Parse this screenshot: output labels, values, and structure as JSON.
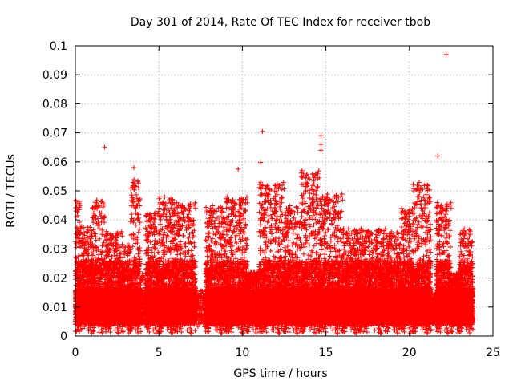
{
  "chart_data": {
    "type": "scatter",
    "title": "Day 301 of 2014, Rate Of TEC Index for receiver tbob",
    "xlabel": "GPS time / hours",
    "ylabel": "ROTI / TECUs",
    "xlim": [
      0,
      25
    ],
    "ylim": [
      0,
      0.1
    ],
    "xticks": [
      0,
      5,
      10,
      15,
      20,
      25
    ],
    "yticks": [
      0,
      0.01,
      0.02,
      0.03,
      0.04,
      0.05,
      0.06,
      0.07,
      0.08,
      0.09,
      0.1
    ],
    "xtick_labels": [
      "0",
      "5",
      "10",
      "15",
      "20",
      "25"
    ],
    "ytick_labels": [
      "0",
      "0.01",
      "0.02",
      "0.03",
      "0.04",
      "0.05",
      "0.06",
      "0.07",
      "0.08",
      "0.09",
      "0.1"
    ],
    "grid": true,
    "marker": "+",
    "color": "#ff0000",
    "notable_points": [
      {
        "x": 1.75,
        "y": 0.065
      },
      {
        "x": 3.5,
        "y": 0.058
      },
      {
        "x": 9.75,
        "y": 0.0575
      },
      {
        "x": 11.2,
        "y": 0.0705
      },
      {
        "x": 11.1,
        "y": 0.0598
      },
      {
        "x": 14.7,
        "y": 0.069
      },
      {
        "x": 14.7,
        "y": 0.066
      },
      {
        "x": 14.7,
        "y": 0.064
      },
      {
        "x": 21.7,
        "y": 0.062
      },
      {
        "x": 22.2,
        "y": 0.097
      }
    ],
    "activity_profile": [
      {
        "x0": 0.0,
        "x1": 0.3,
        "y_max": 0.047,
        "density": 1.0
      },
      {
        "x0": 0.3,
        "x1": 1.0,
        "y_max": 0.038,
        "density": 1.0
      },
      {
        "x0": 1.0,
        "x1": 1.8,
        "y_max": 0.047,
        "density": 1.0
      },
      {
        "x0": 1.8,
        "x1": 2.8,
        "y_max": 0.036,
        "density": 1.0
      },
      {
        "x0": 2.8,
        "x1": 3.3,
        "y_max": 0.032,
        "density": 0.8
      },
      {
        "x0": 3.3,
        "x1": 3.9,
        "y_max": 0.054,
        "density": 1.0
      },
      {
        "x0": 3.9,
        "x1": 4.2,
        "y_max": 0.022,
        "density": 0.3
      },
      {
        "x0": 4.2,
        "x1": 5.0,
        "y_max": 0.043,
        "density": 1.0
      },
      {
        "x0": 5.0,
        "x1": 6.0,
        "y_max": 0.048,
        "density": 1.0
      },
      {
        "x0": 6.0,
        "x1": 7.2,
        "y_max": 0.046,
        "density": 1.0
      },
      {
        "x0": 7.2,
        "x1": 7.8,
        "y_max": 0.015,
        "density": 0.15
      },
      {
        "x0": 7.8,
        "x1": 9.0,
        "y_max": 0.045,
        "density": 1.0
      },
      {
        "x0": 9.0,
        "x1": 10.3,
        "y_max": 0.048,
        "density": 1.0
      },
      {
        "x0": 10.3,
        "x1": 11.0,
        "y_max": 0.022,
        "density": 0.9
      },
      {
        "x0": 11.0,
        "x1": 12.5,
        "y_max": 0.053,
        "density": 1.0
      },
      {
        "x0": 12.5,
        "x1": 13.5,
        "y_max": 0.045,
        "density": 1.0
      },
      {
        "x0": 13.5,
        "x1": 14.6,
        "y_max": 0.057,
        "density": 1.0
      },
      {
        "x0": 14.6,
        "x1": 16.0,
        "y_max": 0.049,
        "density": 1.0
      },
      {
        "x0": 16.0,
        "x1": 17.0,
        "y_max": 0.037,
        "density": 1.0
      },
      {
        "x0": 17.0,
        "x1": 18.6,
        "y_max": 0.037,
        "density": 1.0
      },
      {
        "x0": 18.6,
        "x1": 19.5,
        "y_max": 0.036,
        "density": 1.0
      },
      {
        "x0": 19.5,
        "x1": 20.2,
        "y_max": 0.044,
        "density": 1.0
      },
      {
        "x0": 20.2,
        "x1": 21.3,
        "y_max": 0.053,
        "density": 1.0
      },
      {
        "x0": 21.3,
        "x1": 21.6,
        "y_max": 0.012,
        "density": 0.3
      },
      {
        "x0": 21.6,
        "x1": 22.5,
        "y_max": 0.046,
        "density": 1.0
      },
      {
        "x0": 22.5,
        "x1": 23.0,
        "y_max": 0.022,
        "density": 0.9
      },
      {
        "x0": 23.0,
        "x1": 23.8,
        "y_max": 0.037,
        "density": 1.0
      }
    ]
  }
}
